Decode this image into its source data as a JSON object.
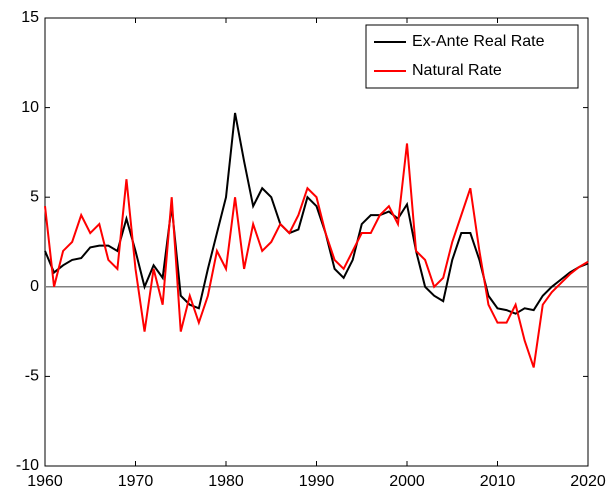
{
  "chart_data": {
    "type": "line",
    "x": [
      1960,
      1961,
      1962,
      1963,
      1964,
      1965,
      1966,
      1967,
      1968,
      1969,
      1970,
      1971,
      1972,
      1973,
      1974,
      1975,
      1976,
      1977,
      1978,
      1979,
      1980,
      1981,
      1982,
      1983,
      1984,
      1985,
      1986,
      1987,
      1988,
      1989,
      1990,
      1991,
      1992,
      1993,
      1994,
      1995,
      1996,
      1997,
      1998,
      1999,
      2000,
      2001,
      2002,
      2003,
      2004,
      2005,
      2006,
      2007,
      2008,
      2009,
      2010,
      2011,
      2012,
      2013,
      2014,
      2015,
      2016,
      2017,
      2018,
      2019,
      2020
    ],
    "series": [
      {
        "name": "Ex-Ante Real Rate",
        "color": "#000000",
        "values": [
          2,
          0.8,
          1.2,
          1.5,
          1.6,
          2.2,
          2.3,
          2.3,
          2,
          3.8,
          2,
          0,
          1.2,
          0.5,
          4.5,
          -0.5,
          -1,
          -1.2,
          1,
          3,
          5,
          9.7,
          7,
          4.5,
          5.5,
          5,
          3.5,
          3,
          3.2,
          5,
          4.5,
          3,
          1,
          0.5,
          1.5,
          3.5,
          4,
          4,
          4.2,
          3.8,
          4.6,
          2,
          0,
          -0.5,
          -0.8,
          1.5,
          3,
          3,
          1.5,
          -0.5,
          -1.2,
          -1.3,
          -1.5,
          -1.2,
          -1.3,
          -0.5,
          0,
          0.4,
          0.8,
          1.1,
          1.3
        ]
      },
      {
        "name": "Natural Rate",
        "color": "#ff0000",
        "values": [
          4.5,
          0,
          2,
          2.5,
          4,
          3,
          3.5,
          1.5,
          1,
          6,
          1,
          -2.5,
          1,
          -1,
          5,
          -2.5,
          -0.5,
          -2,
          -0.5,
          2,
          1,
          5,
          1,
          3.5,
          2,
          2.5,
          3.5,
          3,
          4,
          5.5,
          5,
          3,
          1.5,
          1,
          2,
          3,
          3,
          4,
          4.5,
          3.5,
          8,
          2,
          1.5,
          0,
          0.5,
          2.5,
          4,
          5.5,
          2,
          -1,
          -2,
          -2,
          -1,
          -3,
          -4.5,
          -1,
          -0.3,
          0.2,
          0.7,
          1.1,
          1.4
        ]
      }
    ],
    "xlim": [
      1960,
      2020
    ],
    "xticks": [
      1960,
      1970,
      1980,
      1990,
      2000,
      2010,
      2020
    ],
    "ylim": [
      -10,
      15
    ],
    "yticks": [
      -10,
      -5,
      0,
      5,
      10,
      15
    ],
    "legend": "upper right"
  }
}
